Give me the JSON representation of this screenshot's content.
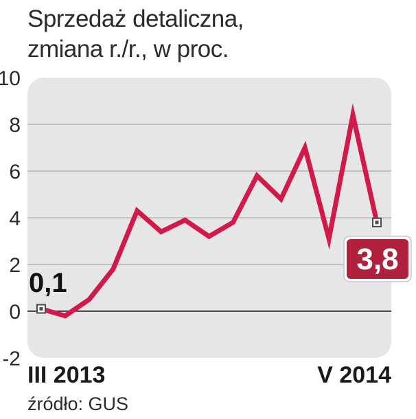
{
  "title_line1": "Sprzedaż detaliczna,",
  "title_line2": "zmiana r./r.,  w proc.",
  "source": "źródło: GUS",
  "colors": {
    "line": "#d21a4a",
    "plot_bg": "#e6e6e6",
    "callout_bg": "#b0213e",
    "grid": "#a9a9a9",
    "zero_line": "#1a1a1a"
  },
  "chart_data": {
    "type": "line",
    "x_start_label": "III 2013",
    "x_end_label": "V 2014",
    "yticks": [
      "-2",
      "0",
      "2",
      "4",
      "6",
      "8",
      "10"
    ],
    "ylim": [
      -2,
      10
    ],
    "grid": true,
    "values": [
      0.1,
      -0.2,
      0.5,
      1.8,
      4.3,
      3.4,
      3.9,
      3.2,
      3.8,
      5.8,
      4.8,
      7.0,
      3.1,
      8.4,
      3.8
    ],
    "start_callout": "0,1",
    "end_callout": "3,8"
  }
}
